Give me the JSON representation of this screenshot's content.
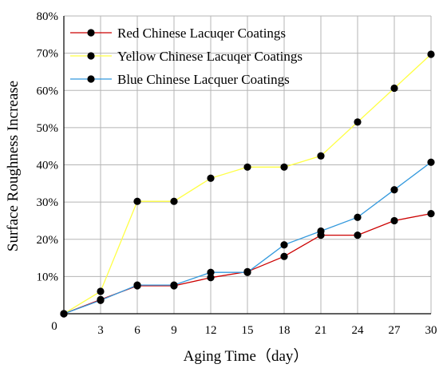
{
  "chart_data": {
    "type": "line",
    "xlabel": "Aging Time（day）",
    "ylabel": "Surface Roughness Increase",
    "x": [
      0,
      3,
      6,
      9,
      12,
      15,
      18,
      21,
      24,
      27,
      30
    ],
    "x_tick_labels": [
      "0",
      "3",
      "6",
      "9",
      "12",
      "15",
      "18",
      "21",
      "24",
      "27",
      "30"
    ],
    "y_tick_labels": [
      "10%",
      "20%",
      "30%",
      "40%",
      "50%",
      "60%",
      "70%",
      "80%"
    ],
    "y_ticks": [
      10,
      20,
      30,
      40,
      50,
      60,
      70,
      80
    ],
    "xlim": [
      0,
      30
    ],
    "ylim": [
      0,
      80
    ],
    "grid": true,
    "legend_position": "top-left",
    "series": [
      {
        "name": "Red Chinese Lacuqer Coatings",
        "color": "#cc0000",
        "values": [
          0,
          3.8,
          7.5,
          7.5,
          9.7,
          11.3,
          15.4,
          21.1,
          21.1,
          25.0,
          26.9
        ]
      },
      {
        "name": "Yellow Chinese Lacuqer Coatings",
        "color": "#ffff44",
        "values": [
          0,
          6.0,
          30.2,
          30.2,
          36.4,
          39.4,
          39.4,
          42.4,
          51.5,
          60.6,
          69.7
        ]
      },
      {
        "name": "Blue Chinese Lacquer Coatings",
        "color": "#3399dd",
        "values": [
          0,
          3.6,
          7.7,
          7.7,
          11.1,
          11.1,
          18.5,
          22.2,
          25.9,
          33.3,
          40.7
        ]
      }
    ]
  }
}
